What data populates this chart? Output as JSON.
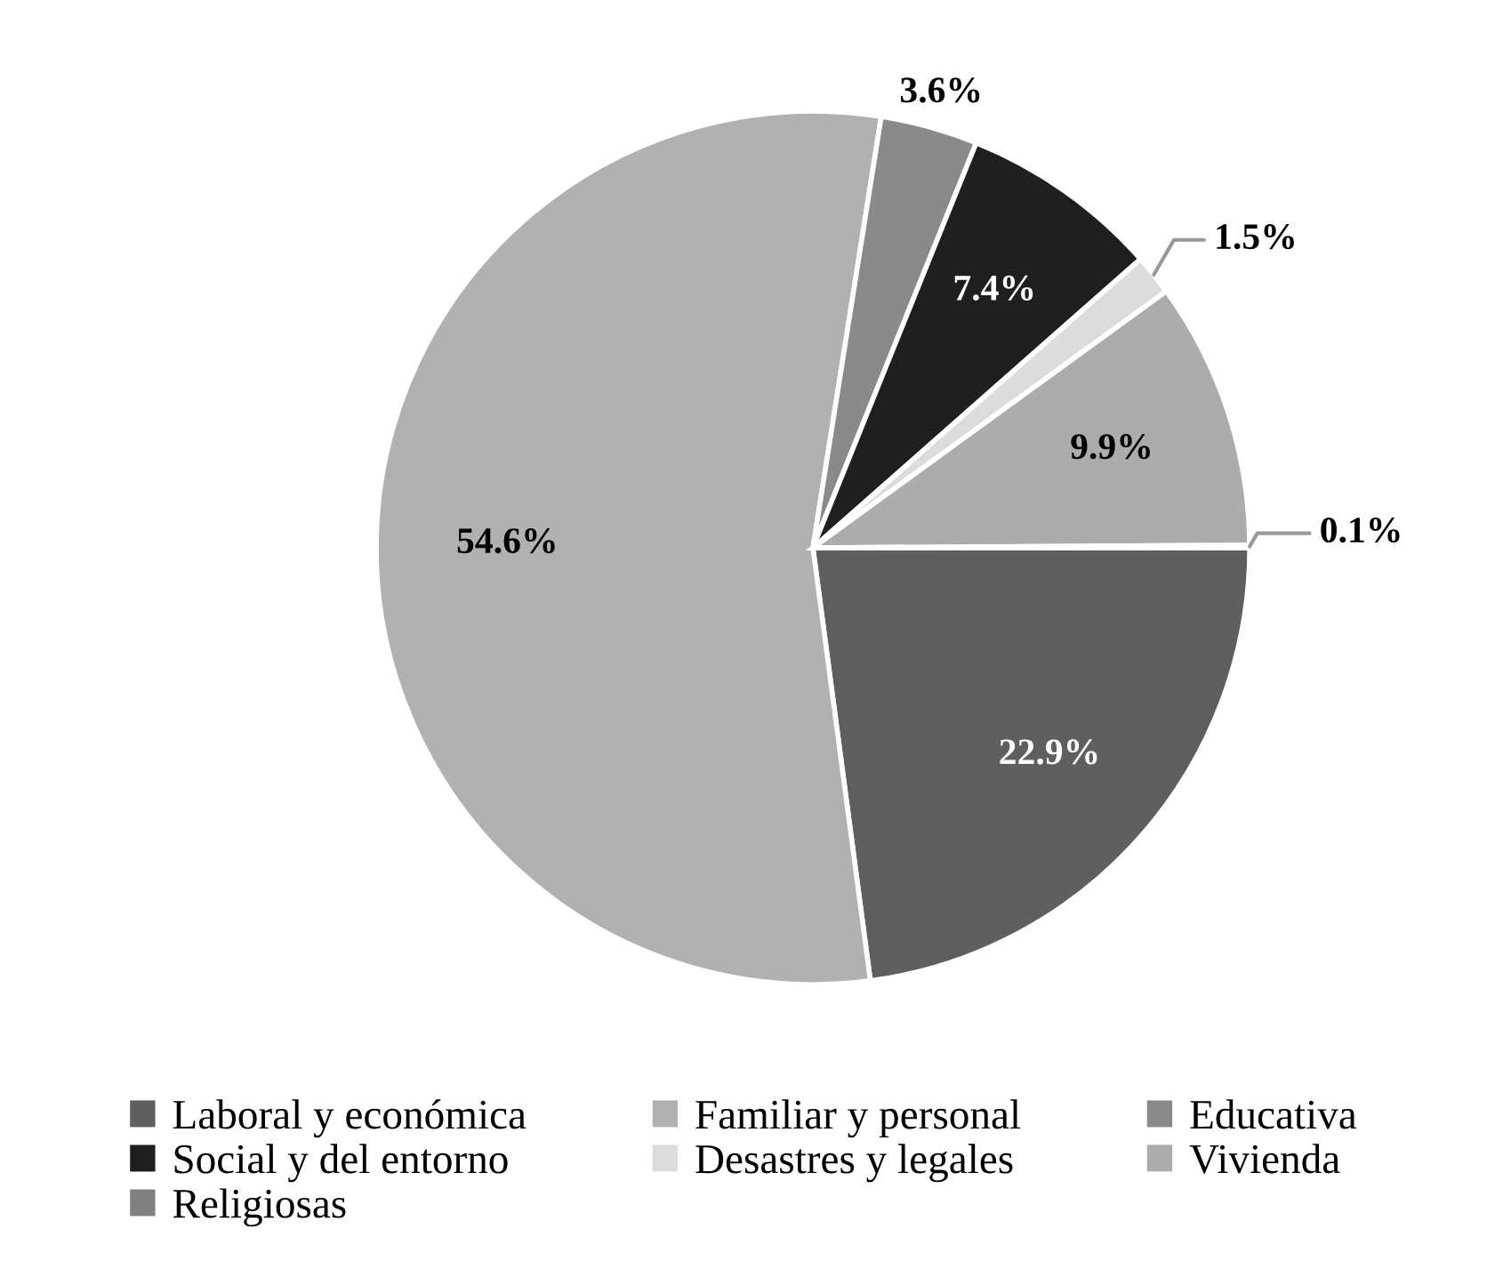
{
  "chart_data": {
    "type": "pie",
    "categories": [
      "Laboral y económica",
      "Familiar y personal",
      "Educativa",
      "Social y del entorno",
      "Desastres y legales",
      "Vivienda",
      "Religiosas"
    ],
    "values": [
      22.9,
      54.6,
      3.6,
      7.4,
      1.5,
      9.9,
      0.1
    ],
    "colors": [
      "#5f5f5f",
      "#b1b1b1",
      "#8a8a8a",
      "#1f1f1f",
      "#dcdcdc",
      "#acacac",
      "#808080"
    ],
    "value_labels": [
      "22.9%",
      "54.6%",
      "3.6%",
      "7.4%",
      "1.5%",
      "9.9%",
      "0.1%"
    ],
    "legend": "bottom"
  }
}
